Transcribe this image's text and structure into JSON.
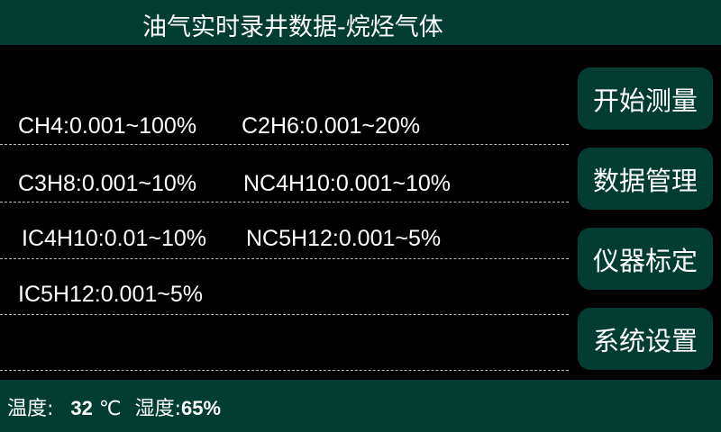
{
  "header": {
    "title": "油气实时录井数据-烷烃气体"
  },
  "ranges": [
    "CH4:0.001~100%",
    "C2H6:0.001~20%",
    "C3H8:0.001~10%",
    "NC4H10:0.001~10%",
    "IC4H10:0.01~10%",
    "NC5H12:0.001~5%",
    "IC5H12:0.001~5%"
  ],
  "buttons": [
    "开始测量",
    "数据管理",
    "仪器标定",
    "系统设置"
  ],
  "footer": {
    "temp_label": "温度:",
    "temp_value": "32",
    "temp_unit": "℃",
    "humidity_label": "湿度:",
    "humidity_value": "65%"
  },
  "colors": {
    "panel": "#033d32",
    "background": "#000000"
  }
}
